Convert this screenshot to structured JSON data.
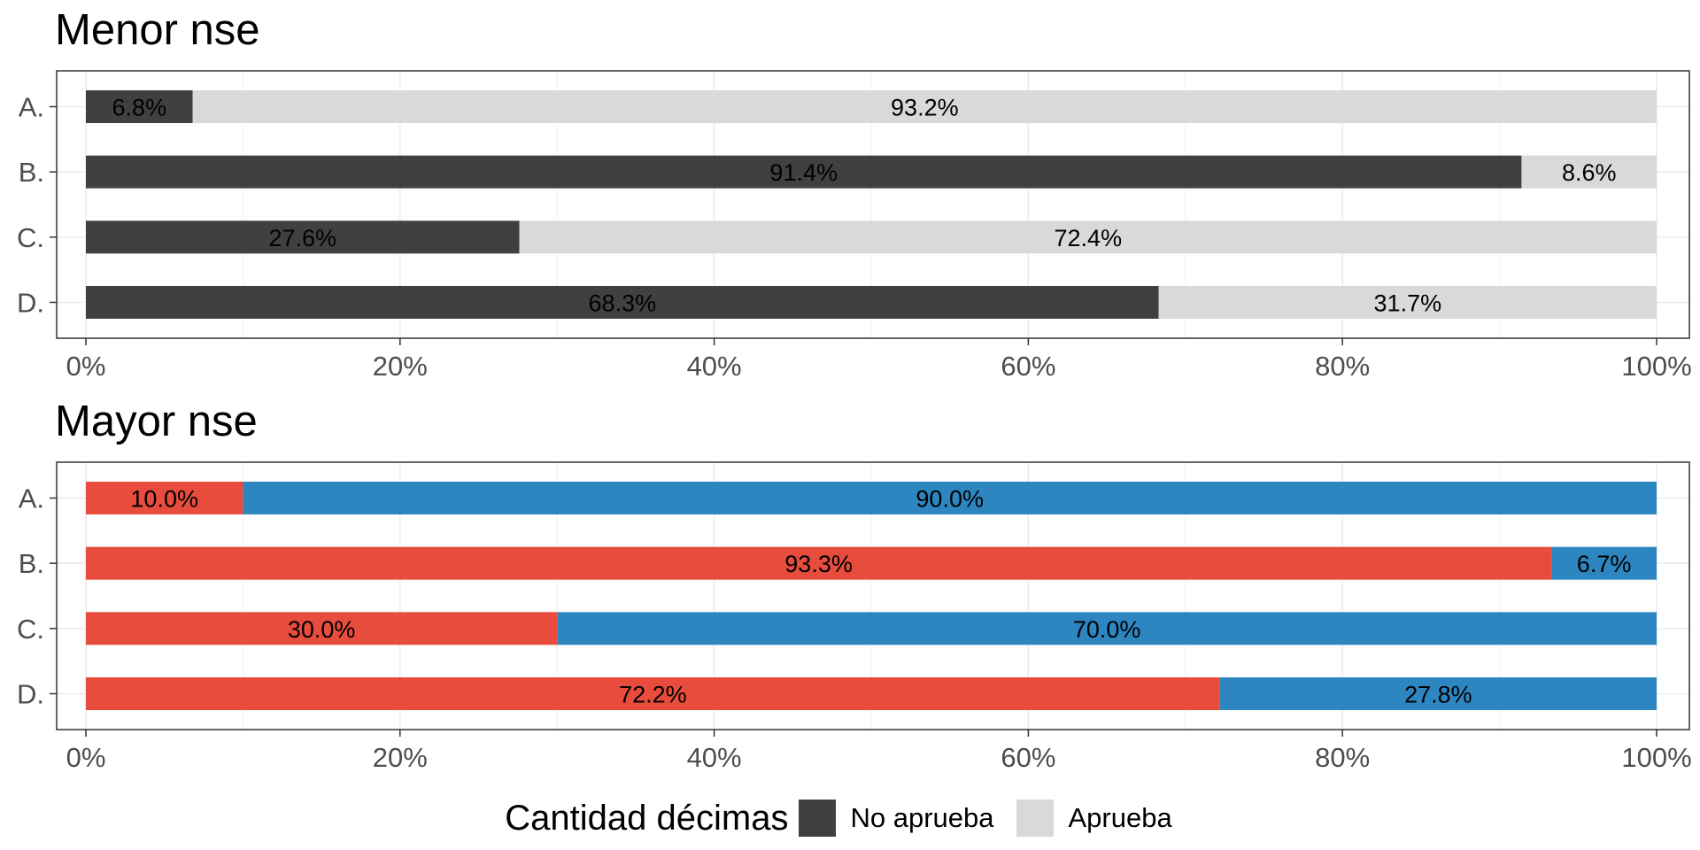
{
  "chart_data": [
    {
      "type": "bar",
      "orientation": "horizontal",
      "stacked": true,
      "title": "Menor nse",
      "categories": [
        "A.",
        "B.",
        "C.",
        "D."
      ],
      "series": [
        {
          "name": "No aprueba",
          "color": "#404040",
          "values": [
            6.8,
            91.4,
            27.6,
            68.3
          ]
        },
        {
          "name": "Aprueba",
          "color": "#d9d9d9",
          "values": [
            93.2,
            8.6,
            72.4,
            31.7
          ]
        }
      ],
      "data_labels": [
        [
          "6.8%",
          "93.2%"
        ],
        [
          "91.4%",
          "8.6%"
        ],
        [
          "27.6%",
          "72.4%"
        ],
        [
          "68.3%",
          "31.7%"
        ]
      ],
      "x_ticks": [
        "0%",
        "20%",
        "40%",
        "60%",
        "80%",
        "100%"
      ],
      "xlim": [
        0,
        100
      ],
      "grid": true
    },
    {
      "type": "bar",
      "orientation": "horizontal",
      "stacked": true,
      "title": "Mayor nse",
      "categories": [
        "A.",
        "B.",
        "C.",
        "D."
      ],
      "series": [
        {
          "color": "#e74c3c",
          "values": [
            10.0,
            93.3,
            30.0,
            72.2
          ]
        },
        {
          "color": "#2e86c1",
          "values": [
            90.0,
            6.7,
            70.0,
            27.8
          ]
        }
      ],
      "data_labels": [
        [
          "10.0%",
          "90.0%"
        ],
        [
          "93.3%",
          "6.7%"
        ],
        [
          "30.0%",
          "70.0%"
        ],
        [
          "72.2%",
          "27.8%"
        ]
      ],
      "x_ticks": [
        "0%",
        "20%",
        "40%",
        "60%",
        "80%",
        "100%"
      ],
      "xlim": [
        0,
        100
      ],
      "grid": true
    }
  ],
  "legend": {
    "title": "Cantidad décimas",
    "position": "bottom",
    "items": [
      {
        "label": "No aprueba",
        "color": "#404040"
      },
      {
        "label": "Aprueba",
        "color": "#d9d9d9"
      }
    ]
  }
}
